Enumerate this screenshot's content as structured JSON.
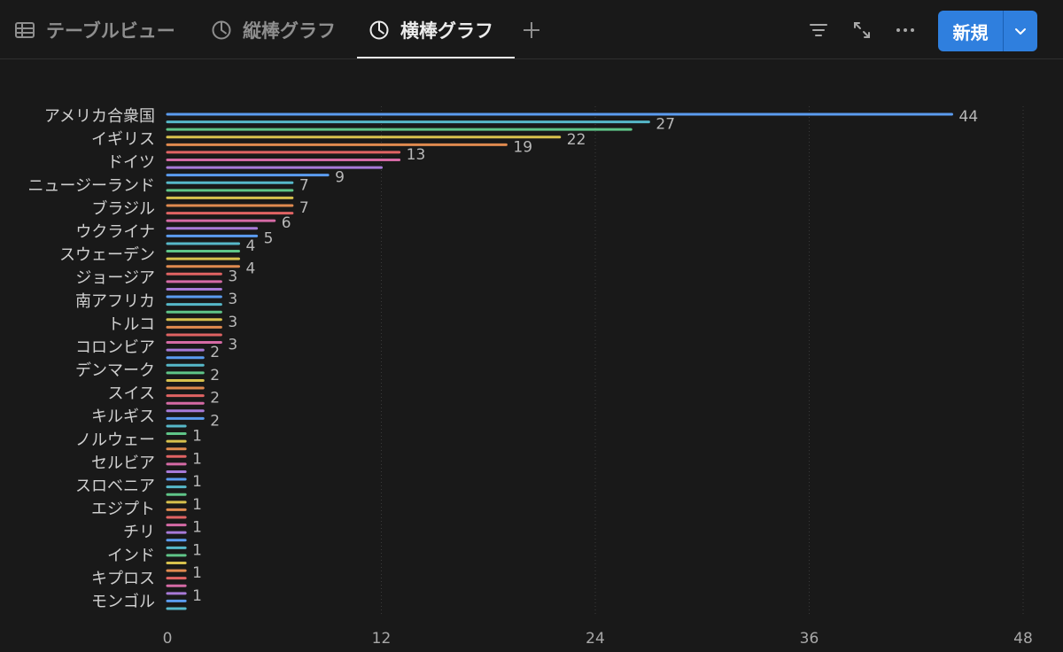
{
  "tabs": [
    {
      "label": "テーブルビュー",
      "icon": "table-icon",
      "active": false
    },
    {
      "label": "縦棒グラフ",
      "icon": "pie-chart-icon",
      "active": false
    },
    {
      "label": "横棒グラフ",
      "icon": "pie-chart-icon",
      "active": true
    }
  ],
  "toolbar": {
    "add_tab_icon": "plus-icon",
    "filter_icon": "filter-icon",
    "expand_icon": "expand-icon",
    "more_icon": "more-icon",
    "new_label": "新規",
    "new_dropdown_icon": "chevron-down-icon"
  },
  "colors": {
    "background": "#191919",
    "accent": "#2f7fde",
    "palette": [
      "#5b9cf0",
      "#56b8c9",
      "#5fc588",
      "#d7c14d",
      "#e08a4f",
      "#e06363",
      "#d56aa5",
      "#a87ad8"
    ]
  },
  "chart_data": {
    "type": "bar",
    "orientation": "horizontal",
    "categories": [
      "アメリカ合衆国",
      "イギリス",
      "ドイツ",
      "ニュージーランド",
      "ブラジル",
      "ウクライナ",
      "スウェーデン",
      "ジョージア",
      "南アフリカ",
      "トルコ",
      "コロンビア",
      "デンマーク",
      "スイス",
      "キルギス",
      "ノルウェー",
      "セルビア",
      "スロベニア",
      "エジプト",
      "チリ",
      "インド",
      "キプロス",
      "モンゴル"
    ],
    "bars": [
      {
        "value": 44,
        "label": "44"
      },
      {
        "value": 27,
        "label": "27"
      },
      {
        "value": 26,
        "label": ""
      },
      {
        "value": 22,
        "label": "22"
      },
      {
        "value": 19,
        "label": "19"
      },
      {
        "value": 13,
        "label": "13"
      },
      {
        "value": 13,
        "label": ""
      },
      {
        "value": 12,
        "label": ""
      },
      {
        "value": 9,
        "label": "9"
      },
      {
        "value": 7,
        "label": "7"
      },
      {
        "value": 7,
        "label": ""
      },
      {
        "value": 7,
        "label": ""
      },
      {
        "value": 7,
        "label": "7"
      },
      {
        "value": 7,
        "label": ""
      },
      {
        "value": 6,
        "label": "6"
      },
      {
        "value": 5,
        "label": ""
      },
      {
        "value": 5,
        "label": "5"
      },
      {
        "value": 4,
        "label": "4"
      },
      {
        "value": 4,
        "label": ""
      },
      {
        "value": 4,
        "label": ""
      },
      {
        "value": 4,
        "label": "4"
      },
      {
        "value": 3,
        "label": "3"
      },
      {
        "value": 3,
        "label": ""
      },
      {
        "value": 3,
        "label": ""
      },
      {
        "value": 3,
        "label": "3"
      },
      {
        "value": 3,
        "label": ""
      },
      {
        "value": 3,
        "label": ""
      },
      {
        "value": 3,
        "label": "3"
      },
      {
        "value": 3,
        "label": ""
      },
      {
        "value": 3,
        "label": ""
      },
      {
        "value": 3,
        "label": "3"
      },
      {
        "value": 2,
        "label": "2"
      },
      {
        "value": 2,
        "label": ""
      },
      {
        "value": 2,
        "label": ""
      },
      {
        "value": 2,
        "label": "2"
      },
      {
        "value": 2,
        "label": ""
      },
      {
        "value": 2,
        "label": ""
      },
      {
        "value": 2,
        "label": "2"
      },
      {
        "value": 2,
        "label": ""
      },
      {
        "value": 2,
        "label": ""
      },
      {
        "value": 2,
        "label": "2"
      },
      {
        "value": 1,
        "label": ""
      },
      {
        "value": 1,
        "label": "1"
      },
      {
        "value": 1,
        "label": ""
      },
      {
        "value": 1,
        "label": ""
      },
      {
        "value": 1,
        "label": "1"
      },
      {
        "value": 1,
        "label": ""
      },
      {
        "value": 1,
        "label": ""
      },
      {
        "value": 1,
        "label": "1"
      },
      {
        "value": 1,
        "label": ""
      },
      {
        "value": 1,
        "label": ""
      },
      {
        "value": 1,
        "label": "1"
      },
      {
        "value": 1,
        "label": ""
      },
      {
        "value": 1,
        "label": ""
      },
      {
        "value": 1,
        "label": "1"
      },
      {
        "value": 1,
        "label": ""
      },
      {
        "value": 1,
        "label": ""
      },
      {
        "value": 1,
        "label": "1"
      },
      {
        "value": 1,
        "label": ""
      },
      {
        "value": 1,
        "label": ""
      },
      {
        "value": 1,
        "label": "1"
      },
      {
        "value": 1,
        "label": ""
      },
      {
        "value": 1,
        "label": ""
      },
      {
        "value": 1,
        "label": "1"
      },
      {
        "value": 1,
        "label": ""
      },
      {
        "value": 1,
        "label": ""
      }
    ],
    "x_ticks": [
      0,
      12,
      24,
      36,
      48
    ],
    "xlim": [
      0,
      48
    ],
    "grid": true,
    "title": "",
    "xlabel": "",
    "ylabel": ""
  }
}
